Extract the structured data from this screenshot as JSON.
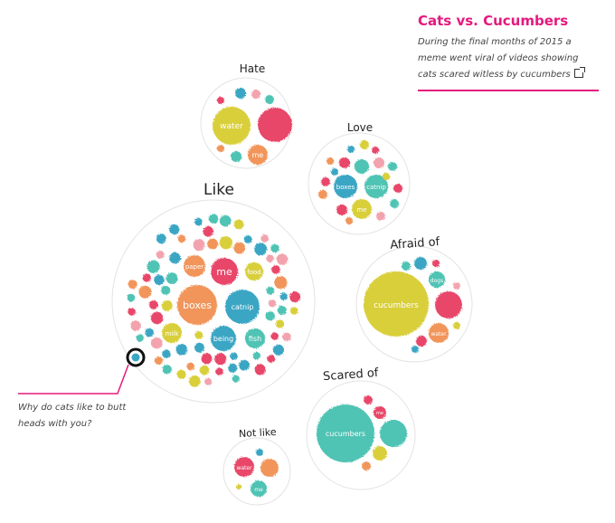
{
  "info": {
    "title": "Cats vs. Cucumbers",
    "description": "During the final months of 2015 a meme went viral of videos showing cats scared witless by cucumbers"
  },
  "question": "Why do cats like to butt heads with you?",
  "colors": {
    "accent": "#e5197d",
    "pink": "#e8466a",
    "teal": "#4fc3b4",
    "blue": "#3aa6c4",
    "yellow": "#d9cf3a",
    "orange": "#f1955a",
    "lightpink": "#f2a3ad"
  },
  "groups": [
    {
      "name": "Hate",
      "words": [
        "water",
        "me"
      ]
    },
    {
      "name": "Love",
      "words": [
        "boxes",
        "catnip",
        "me"
      ]
    },
    {
      "name": "Like",
      "words": [
        "me",
        "paper",
        "food",
        "boxes",
        "catnip",
        "milk",
        "being",
        "fish"
      ]
    },
    {
      "name": "Afraid of",
      "words": [
        "cucumbers",
        "dogs",
        "water"
      ]
    },
    {
      "name": "Scared of",
      "words": [
        "cucumbers",
        "me"
      ]
    },
    {
      "name": "Not like",
      "words": [
        "water",
        "me"
      ]
    }
  ]
}
